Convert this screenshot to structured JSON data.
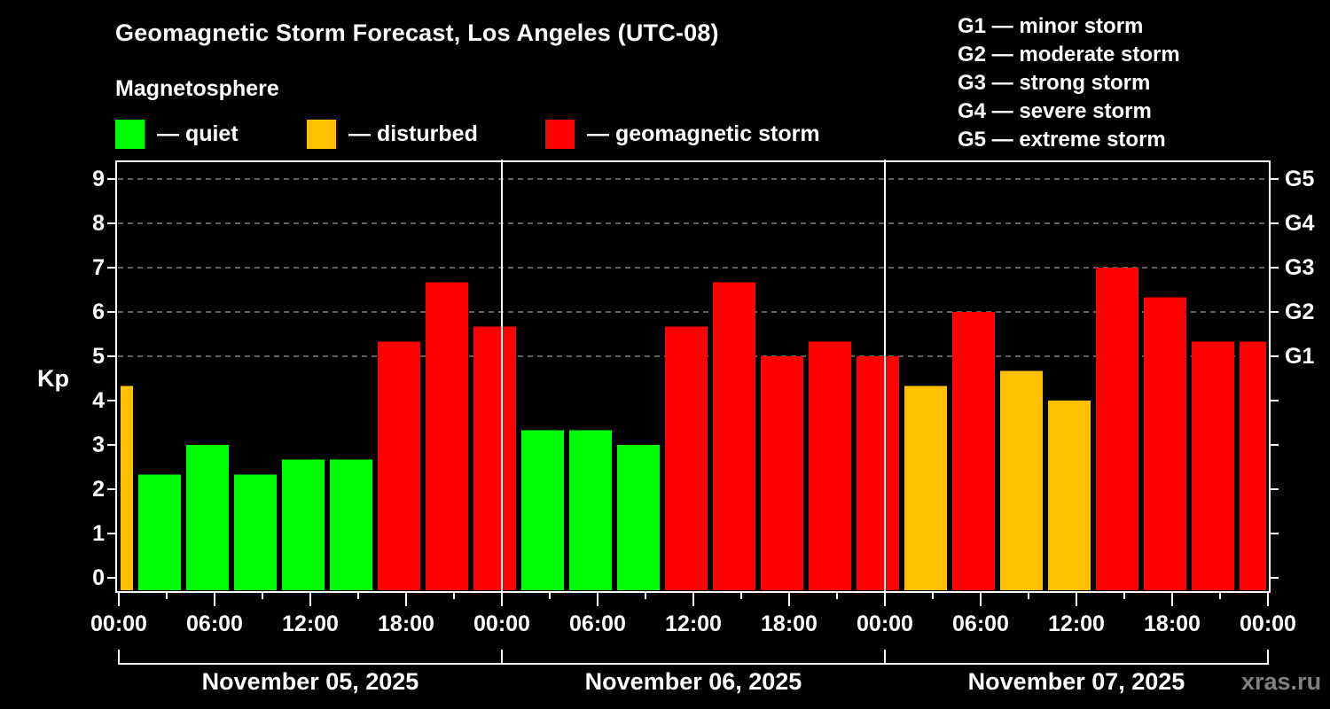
{
  "header": {
    "title": "Geomagnetic Storm Forecast, Los Angeles (UTC-08)",
    "subtitle": "Magnetosphere"
  },
  "legend": [
    {
      "label": "— quiet",
      "color": "#00ff00"
    },
    {
      "label": "— disturbed",
      "color": "#ffc000"
    },
    {
      "label": "— geomagnetic storm",
      "color": "#ff0000"
    }
  ],
  "g_scale_legend": [
    "G1 — minor storm",
    "G2 — moderate storm",
    "G3 — strong storm",
    "G4 — severe storm",
    "G5 — extreme storm"
  ],
  "axes": {
    "ylabel": "Kp",
    "yticks": [
      "0",
      "1",
      "2",
      "3",
      "4",
      "5",
      "6",
      "7",
      "8",
      "9"
    ],
    "right_ticks": [
      {
        "kp": 5,
        "label": "G1"
      },
      {
        "kp": 6,
        "label": "G2"
      },
      {
        "kp": 7,
        "label": "G3"
      },
      {
        "kp": 8,
        "label": "G4"
      },
      {
        "kp": 9,
        "label": "G5"
      }
    ],
    "xticks": [
      "00:00",
      "06:00",
      "12:00",
      "18:00",
      "00:00",
      "06:00",
      "12:00",
      "18:00",
      "00:00",
      "06:00",
      "12:00",
      "18:00",
      "00:00"
    ],
    "dates": [
      "November 05, 2025",
      "November 06, 2025",
      "November 07, 2025"
    ]
  },
  "watermark": "xras.ru",
  "colors": {
    "quiet": "#00ff00",
    "disturbed": "#ffc000",
    "storm": "#ff0000",
    "grid": "#808080",
    "axis": "#ffffff",
    "background": "#000000"
  },
  "chart_data": {
    "type": "bar",
    "title": "Geomagnetic Storm Forecast, Los Angeles (UTC-08)",
    "xlabel": "",
    "ylabel": "Kp",
    "ylim": [
      0,
      9
    ],
    "grid": true,
    "bin_hours": 3,
    "categories": [
      "Nov 04 22:00 (partial)",
      "Nov 05 01:00",
      "Nov 05 04:00",
      "Nov 05 07:00",
      "Nov 05 10:00",
      "Nov 05 13:00",
      "Nov 05 16:00",
      "Nov 05 19:00",
      "Nov 05 22:00",
      "Nov 06 01:00",
      "Nov 06 04:00",
      "Nov 06 07:00",
      "Nov 06 10:00",
      "Nov 06 13:00",
      "Nov 06 16:00",
      "Nov 06 19:00",
      "Nov 06 22:00",
      "Nov 07 01:00",
      "Nov 07 04:00",
      "Nov 07 07:00",
      "Nov 07 10:00",
      "Nov 07 13:00",
      "Nov 07 16:00",
      "Nov 07 19:00",
      "Nov 07 22:00 (partial)"
    ],
    "values": [
      4.33,
      2.33,
      3.0,
      2.33,
      2.67,
      2.67,
      5.33,
      6.67,
      5.67,
      3.33,
      3.33,
      3.0,
      5.67,
      6.67,
      5.0,
      5.33,
      5.0,
      4.33,
      6.0,
      4.67,
      4.0,
      7.0,
      6.33,
      5.33,
      5.33
    ],
    "levels": [
      "disturbed",
      "quiet",
      "quiet",
      "quiet",
      "quiet",
      "quiet",
      "storm",
      "storm",
      "storm",
      "quiet",
      "quiet",
      "quiet",
      "storm",
      "storm",
      "storm",
      "storm",
      "storm",
      "disturbed",
      "storm",
      "disturbed",
      "disturbed",
      "storm",
      "storm",
      "storm",
      "storm"
    ],
    "legend": [
      "quiet",
      "disturbed",
      "geomagnetic storm"
    ],
    "secondary_axis": {
      "G1": 5,
      "G2": 6,
      "G3": 7,
      "G4": 8,
      "G5": 9
    }
  }
}
